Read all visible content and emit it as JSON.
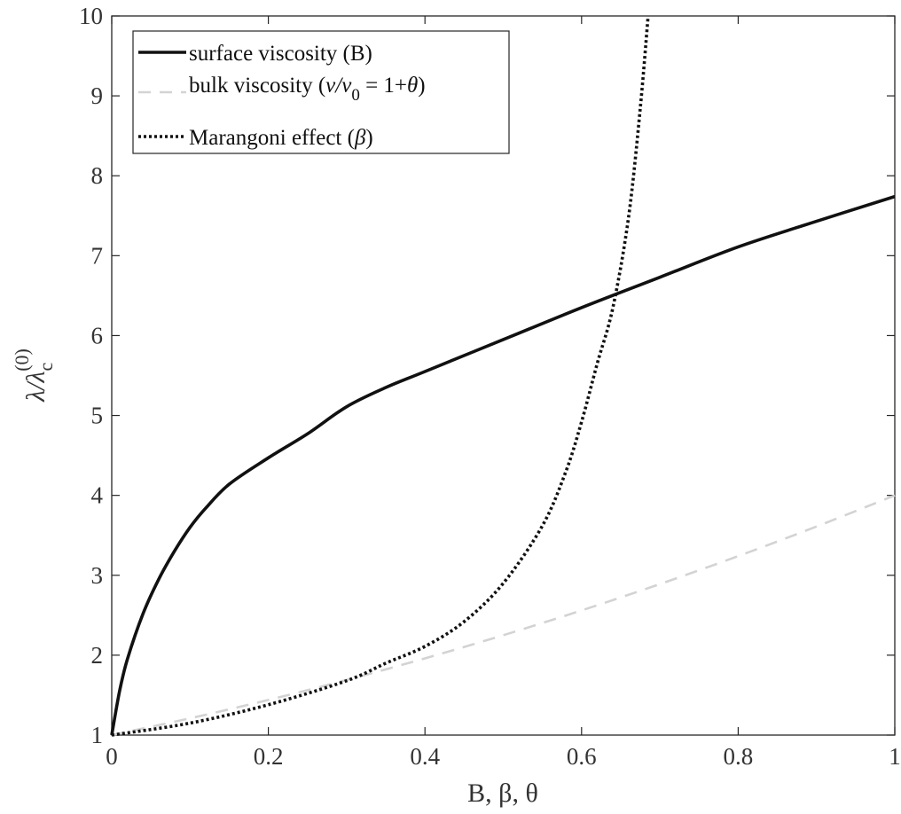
{
  "chart_data": {
    "type": "line",
    "title": "",
    "xlabel": "B, β, θ",
    "ylabel": "λ/λc(0)",
    "ylabel_base": "λ/λ",
    "ylabel_sub": "c",
    "ylabel_sup": "(0)",
    "xlim": [
      0,
      1
    ],
    "ylim": [
      1,
      10
    ],
    "xticks": [
      0,
      0.2,
      0.4,
      0.6,
      0.8,
      1
    ],
    "xtick_labels": [
      "0",
      "0.2",
      "0.4",
      "0.6",
      "0.8",
      "1"
    ],
    "yticks": [
      1,
      2,
      3,
      4,
      5,
      6,
      7,
      8,
      9,
      10
    ],
    "ytick_labels": [
      "1",
      "2",
      "3",
      "4",
      "5",
      "6",
      "7",
      "8",
      "9",
      "10"
    ],
    "grid": false,
    "legend_position": "top-left",
    "series": [
      {
        "name": "surface viscosity (B)",
        "color": "#111111",
        "style": "solid",
        "x": [
          0,
          0.01,
          0.02,
          0.04,
          0.06,
          0.08,
          0.1,
          0.12,
          0.15,
          0.2,
          0.25,
          0.3,
          0.35,
          0.4,
          0.5,
          0.6,
          0.7,
          0.8,
          0.9,
          1.0
        ],
        "y": [
          1.0,
          1.55,
          1.95,
          2.52,
          2.95,
          3.3,
          3.6,
          3.84,
          4.14,
          4.47,
          4.77,
          5.11,
          5.35,
          5.55,
          5.95,
          6.35,
          6.73,
          7.11,
          7.43,
          7.74
        ]
      },
      {
        "name": "bulk viscosity (ν/ν0 = 1+θ)",
        "name_parts": [
          "bulk viscosity (",
          "ν/ν",
          "0",
          " = 1+",
          "θ",
          ")"
        ],
        "color": "#d3d3d3",
        "style": "dashed",
        "x": [
          0,
          0.1,
          0.2,
          0.3,
          0.4,
          0.5,
          0.6,
          0.7,
          0.8,
          0.9,
          1.0
        ],
        "y": [
          1.0,
          1.21,
          1.44,
          1.69,
          1.96,
          2.25,
          2.56,
          2.89,
          3.24,
          3.61,
          4.0
        ]
      },
      {
        "name": "Marangoni effect (β)",
        "name_parts": [
          "Marangoni effect (",
          "β",
          ")"
        ],
        "color": "#111111",
        "style": "dotted",
        "x": [
          0,
          0.1,
          0.2,
          0.3,
          0.35,
          0.4,
          0.45,
          0.5,
          0.55,
          0.58,
          0.6,
          0.62,
          0.64,
          0.66,
          0.675,
          0.685
        ],
        "y": [
          1.0,
          1.15,
          1.38,
          1.68,
          1.9,
          2.11,
          2.42,
          2.9,
          3.62,
          4.3,
          4.92,
          5.65,
          6.35,
          7.48,
          8.85,
          10.0
        ]
      }
    ]
  }
}
